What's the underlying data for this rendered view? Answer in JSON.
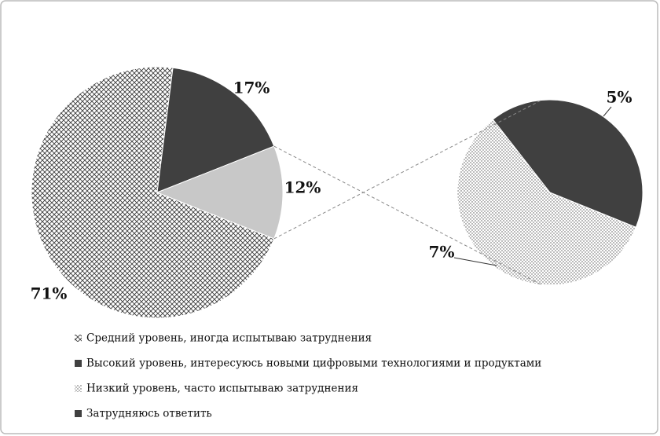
{
  "chart_data": {
    "type": "pie-of-pie",
    "categories": [
      "Средний уровень, иногда испытываю затруднения",
      "Высокий уровень, интересуюсь новыми цифровыми технологиями и продуктами",
      "Низкий уровень, часто испытываю затруднения",
      "Затрудняюсь ответить"
    ],
    "values": [
      71,
      17,
      7,
      5
    ],
    "value_labels": [
      "71%",
      "17%",
      "7%",
      "5%"
    ],
    "colors": [
      "#3a3a3a",
      "#404040",
      "#555555",
      "#404040"
    ],
    "patterns": [
      "crosshatch",
      "solid",
      "dots",
      "solid"
    ],
    "other": {
      "value": 12,
      "value_label": "12%",
      "color": "#c8c8c8"
    },
    "secondary_count": 2
  }
}
